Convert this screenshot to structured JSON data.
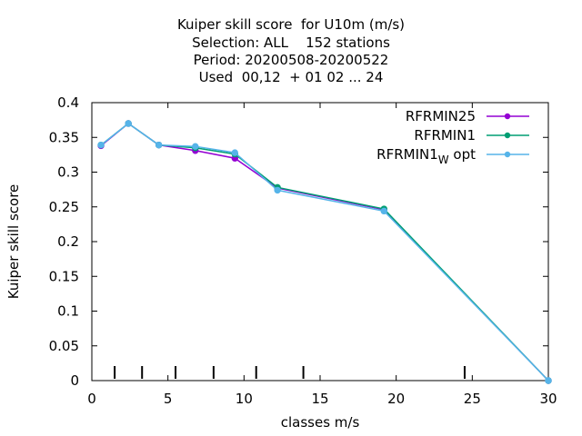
{
  "chart_data": {
    "type": "line",
    "title_lines": [
      "Kuiper skill score  for U10m (m/s)",
      "Selection: ALL    152 stations",
      "Period: 20200508-20200522",
      "Used  00,12  + 01 02 ... 24"
    ],
    "xlabel": "classes m/s",
    "ylabel": "Kuiper skill score",
    "xlim": [
      0,
      30
    ],
    "ylim": [
      0,
      0.4
    ],
    "xticks": [
      "0",
      "5",
      "10",
      "15",
      "20",
      "25",
      "30"
    ],
    "yticks": [
      "0",
      "0.05",
      "0.1",
      "0.15",
      "0.2",
      "0.25",
      "0.3",
      "0.35",
      "0.4"
    ],
    "class_markers_x": [
      1.5,
      3.3,
      5.5,
      8.0,
      10.8,
      13.9,
      24.5
    ],
    "grid": false,
    "legend_position": "top-right",
    "series": [
      {
        "name": "RFRMIN25",
        "color": "#9400d3",
        "x": [
          0.6,
          2.4,
          4.4,
          6.8,
          9.4,
          12.2,
          19.2,
          30
        ],
        "y": [
          0.338,
          0.37,
          0.339,
          0.331,
          0.32,
          0.277,
          0.246,
          0.0
        ]
      },
      {
        "name": "RFRMIN1",
        "color": "#009e73",
        "x": [
          0.6,
          2.4,
          4.4,
          6.8,
          9.4,
          12.2,
          19.2,
          30
        ],
        "y": [
          0.339,
          0.37,
          0.339,
          0.335,
          0.326,
          0.278,
          0.247,
          0.0
        ]
      },
      {
        "name": "RFRMIN1W",
        "name_parts": [
          "RFRMIN1",
          "W",
          " opt"
        ],
        "color": "#56b4e9",
        "x": [
          0.6,
          2.4,
          4.4,
          6.8,
          9.4,
          12.2,
          19.2,
          30
        ],
        "y": [
          0.339,
          0.37,
          0.339,
          0.337,
          0.328,
          0.274,
          0.244,
          0.0
        ]
      }
    ]
  }
}
